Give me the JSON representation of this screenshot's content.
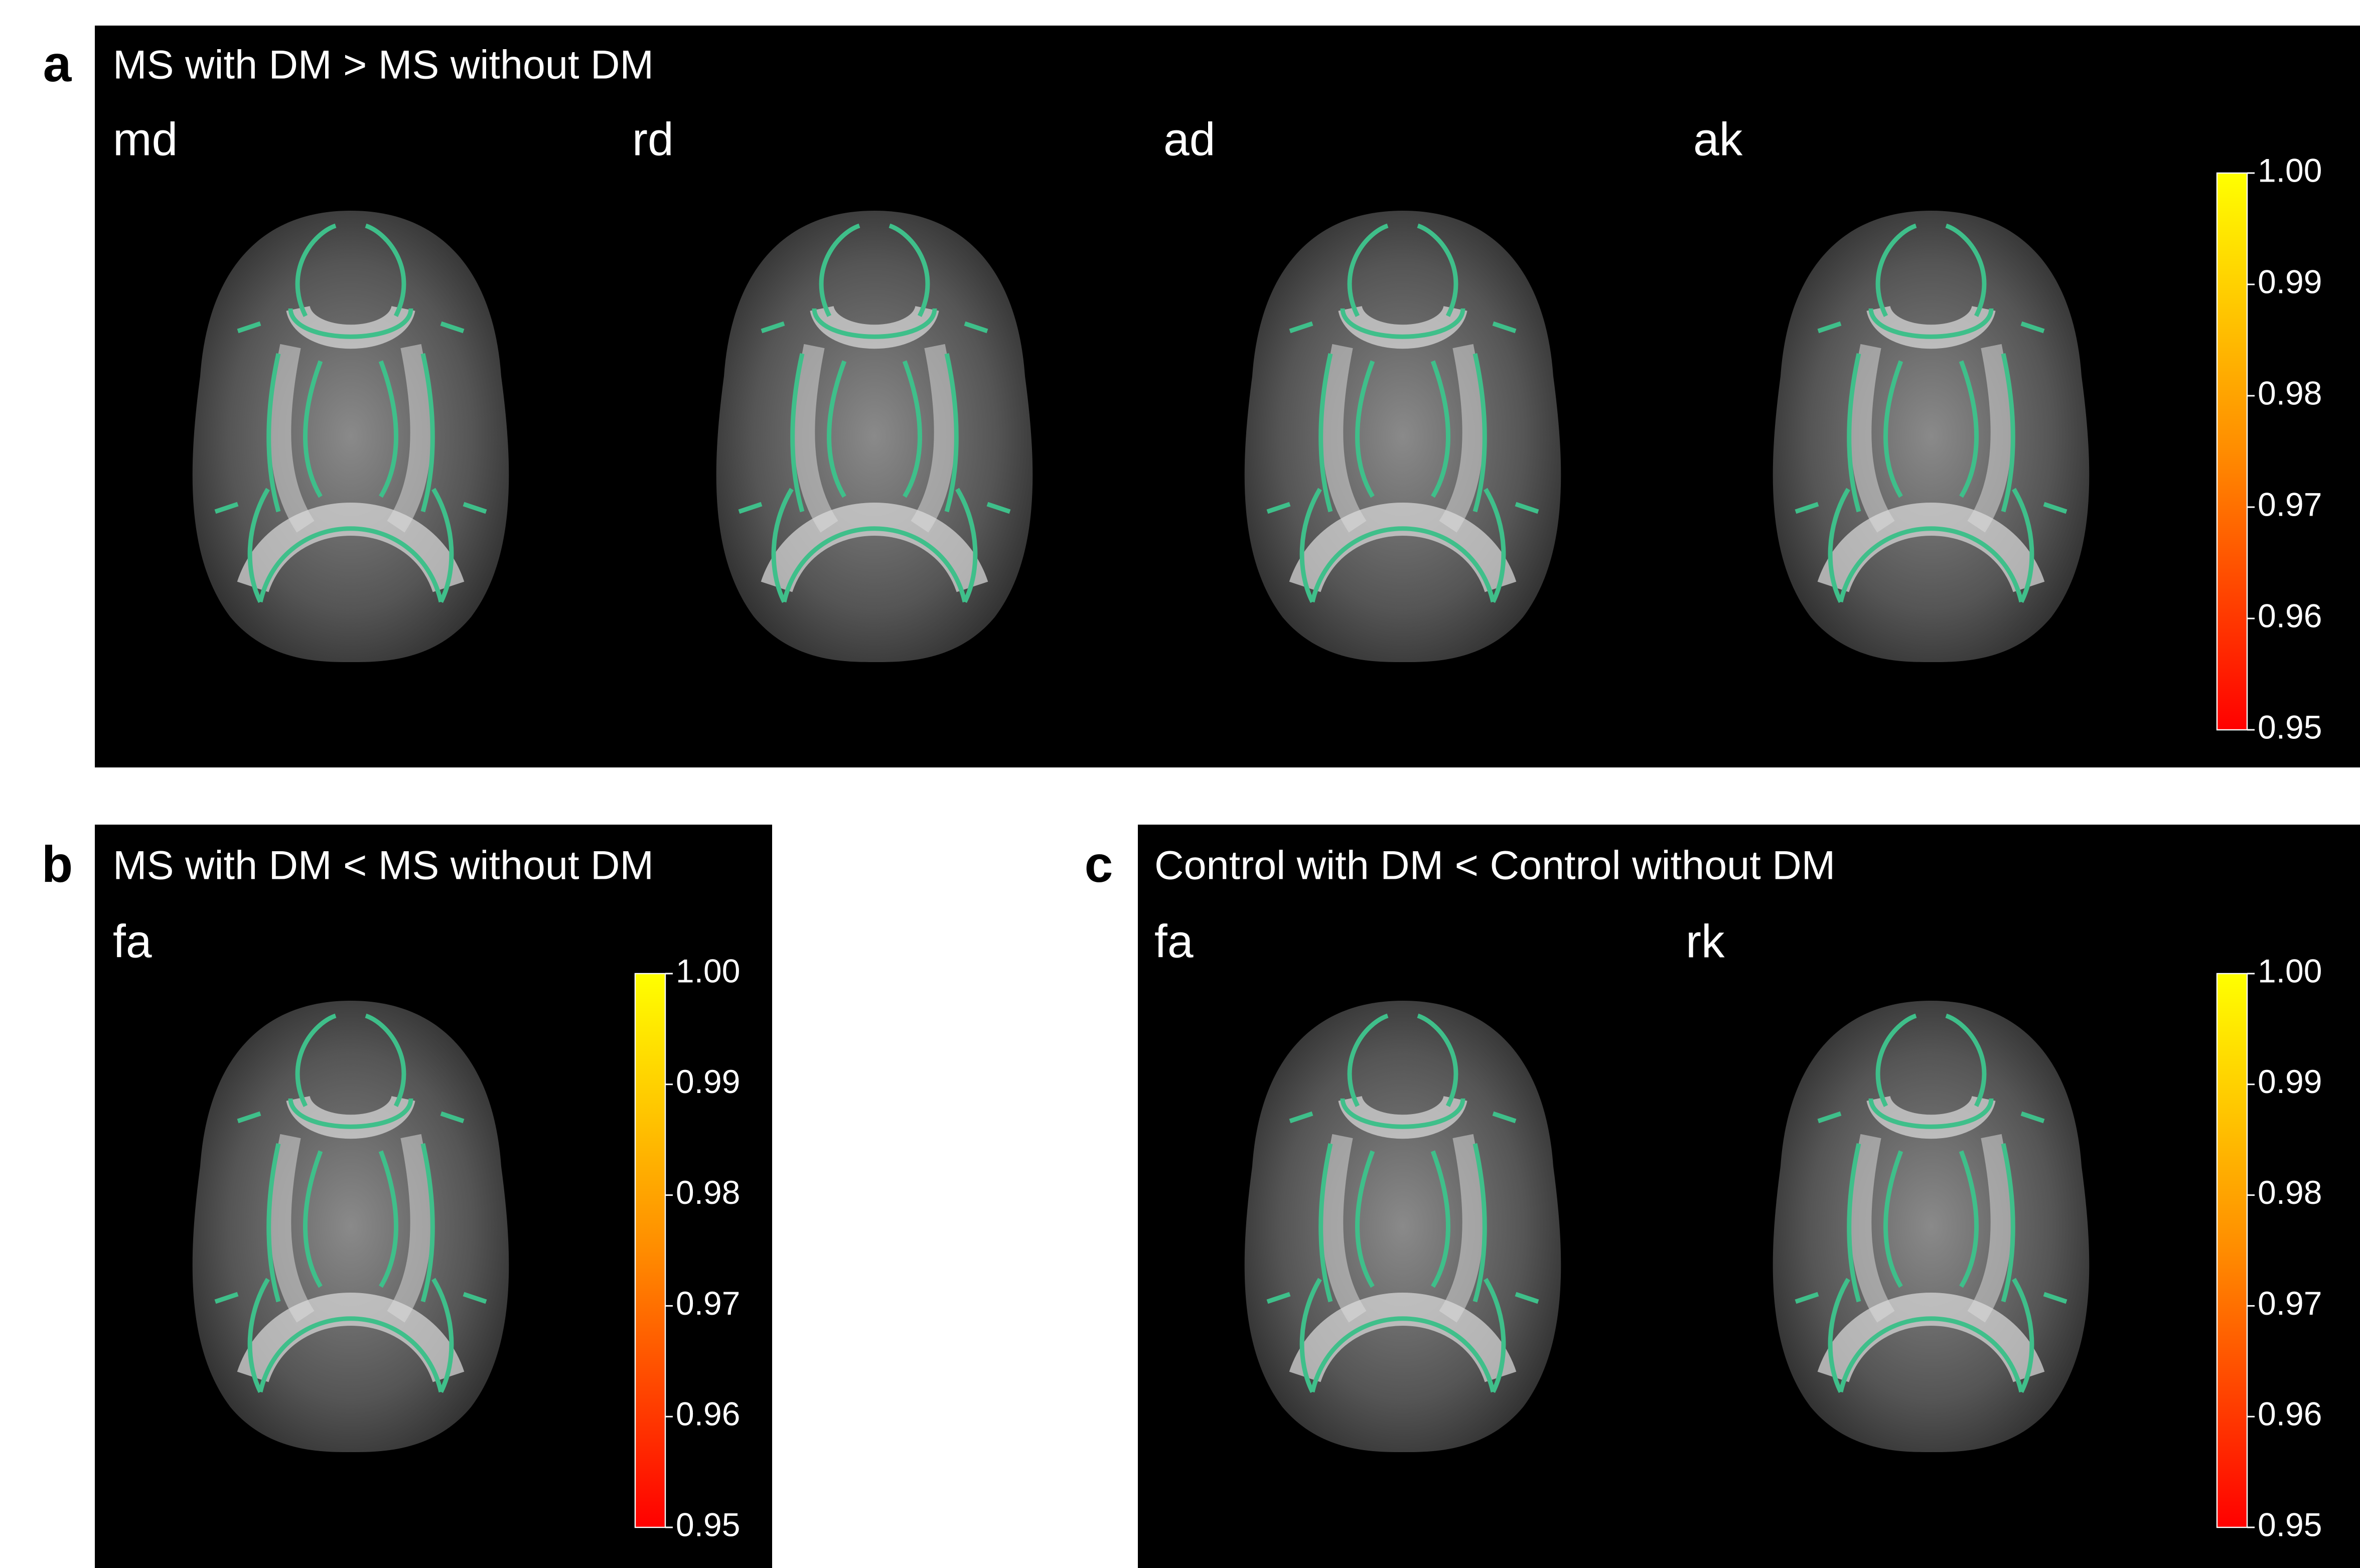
{
  "panels": [
    {
      "label": "a",
      "title": "MS with DM > MS without DM",
      "maps": [
        "md",
        "rd",
        "ad",
        "ak"
      ],
      "colorbar": {
        "lim": [
          0.95,
          1.0
        ],
        "ticks": [
          {
            "value": 1.0,
            "label": "1.00"
          },
          0.99,
          0.98,
          0.97,
          0.96,
          0.95
        ]
      }
    },
    {
      "label": "b",
      "title": "MS with DM < MS without DM",
      "maps": [
        "fa"
      ],
      "colorbar": {
        "lim": [
          0.95,
          1.0
        ],
        "ticks": [
          {
            "value": 1.0,
            "label": "1.00"
          },
          0.99,
          0.98,
          0.97,
          0.96,
          0.95
        ]
      }
    },
    {
      "label": "c",
      "title": "Control with DM < Control without DM",
      "maps": [
        "fa",
        "rk"
      ],
      "colorbar": {
        "lim": [
          0.95,
          1.0
        ],
        "ticks": [
          {
            "value": 1.0,
            "label": "1.00"
          },
          0.99,
          0.98,
          0.97,
          0.96,
          0.95
        ]
      }
    }
  ]
}
